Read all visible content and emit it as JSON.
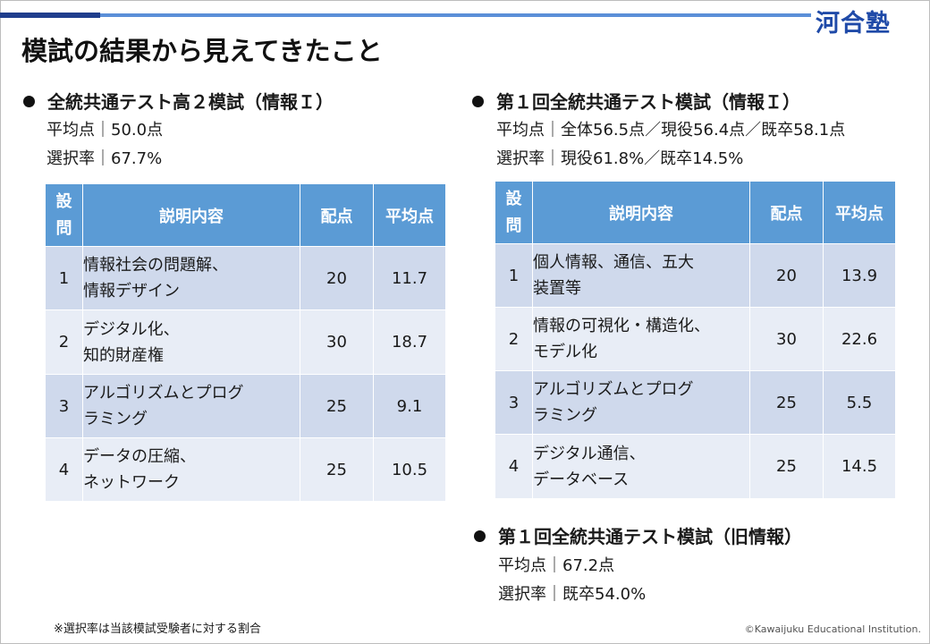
{
  "header": {
    "logo": "河合塾",
    "title": "模試の結果から見えてきたこと"
  },
  "left_section": {
    "heading": "全統共通テスト高２模試（情報Ｉ）",
    "average": "平均点｜50.0点",
    "selection_rate": "選択率｜67.7%",
    "table": {
      "columns": [
        "設問",
        "説明内容",
        "配点",
        "平均点"
      ],
      "col_q_chars": [
        "設",
        "問"
      ],
      "rows": [
        {
          "q": "1",
          "desc": [
            "情報社会の問題解、",
            "情報デザイン"
          ],
          "points": "20",
          "avg": "11.7"
        },
        {
          "q": "2",
          "desc": [
            "デジタル化、",
            "知的財産権"
          ],
          "points": "30",
          "avg": "18.7"
        },
        {
          "q": "3",
          "desc": [
            "アルゴリズムとプログ",
            "ラミング"
          ],
          "points": "25",
          "avg": "9.1"
        },
        {
          "q": "4",
          "desc": [
            "データの圧縮、",
            "ネットワーク"
          ],
          "points": "25",
          "avg": "10.5"
        }
      ]
    }
  },
  "right_section": {
    "heading": "第１回全統共通テスト模試（情報Ｉ）",
    "average": "平均点｜全体56.5点／現役56.4点／既卒58.1点",
    "selection_rate": "選択率｜現役61.8%／既卒14.5%",
    "table": {
      "columns": [
        "設問",
        "説明内容",
        "配点",
        "平均点"
      ],
      "col_q_chars": [
        "設",
        "問"
      ],
      "rows": [
        {
          "q": "1",
          "desc": [
            "個人情報、通信、五大",
            "装置等"
          ],
          "points": "20",
          "avg": "13.9"
        },
        {
          "q": "2",
          "desc": [
            "情報の可視化・構造化、",
            "モデル化"
          ],
          "points": "30",
          "avg": "22.6"
        },
        {
          "q": "3",
          "desc": [
            "アルゴリズムとプログ",
            "ラミング"
          ],
          "points": "25",
          "avg": "5.5"
        },
        {
          "q": "4",
          "desc": [
            "デジタル通信、",
            "データベース"
          ],
          "points": "25",
          "avg": "14.5"
        }
      ]
    }
  },
  "old_section": {
    "heading": "第１回全統共通テスト模試（旧情報）",
    "average": "平均点｜67.2点",
    "selection_rate": "選択率｜既卒54.0%"
  },
  "footer": {
    "note": "※選択率は当該模試受験者に対する割合",
    "copyright": "©Kawaijuku Educational Institution."
  }
}
